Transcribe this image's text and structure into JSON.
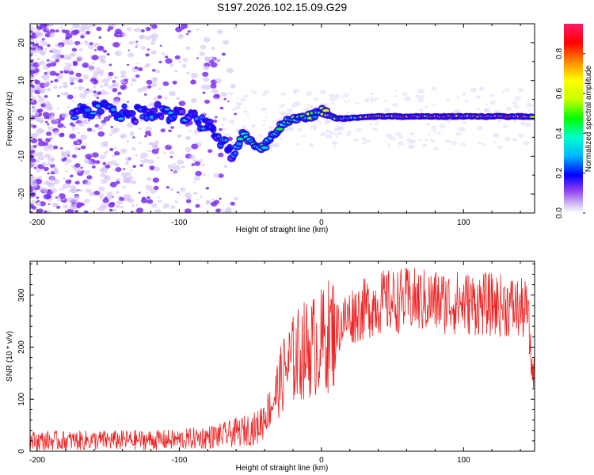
{
  "title": "S197.2026.102.15.09.G29",
  "chart_data": [
    {
      "type": "heatmap",
      "xlabel": "Height of straight line (km)",
      "ylabel": "Frequency (Hz)",
      "xlim": [
        -205,
        150
      ],
      "ylim": [
        -25,
        25
      ],
      "xticks": [
        -200,
        -100,
        0,
        100
      ],
      "yticks": [
        -20,
        -10,
        0,
        10,
        20
      ],
      "ridge_x": [
        -150,
        -130,
        -115,
        -100,
        -80,
        -70,
        -62,
        -55,
        -47,
        -42,
        -35,
        -25,
        -15,
        -5,
        0,
        10,
        20,
        40,
        80,
        150
      ],
      "ridge_y": [
        2,
        1,
        2,
        1,
        -2,
        -6,
        -10,
        -4,
        -7,
        -8,
        -5,
        -1,
        0,
        1,
        2,
        0,
        0,
        0.5,
        0.5,
        0.5
      ],
      "colorbar": {
        "label": "Normalized spectral amplitude",
        "ticks": [
          0.0,
          0.2,
          0.4,
          0.6,
          0.8
        ],
        "range": [
          0,
          0.95
        ]
      }
    },
    {
      "type": "line",
      "xlabel": "Height of straight line (km)",
      "ylabel": "SNR (10 * v/v)",
      "xlim": [
        -205,
        150
      ],
      "ylim": [
        0,
        365
      ],
      "xticks": [
        -200,
        -100,
        0,
        100
      ],
      "yticks": [
        0,
        100,
        200,
        300
      ],
      "color": "#ee2222",
      "trend_x": [
        -205,
        -100,
        -70,
        -45,
        -35,
        -25,
        -15,
        0,
        20,
        40,
        60,
        100,
        130,
        145,
        148,
        150
      ],
      "trend_y": [
        20,
        22,
        30,
        45,
        90,
        160,
        190,
        210,
        260,
        285,
        290,
        285,
        280,
        270,
        160,
        150
      ]
    }
  ]
}
